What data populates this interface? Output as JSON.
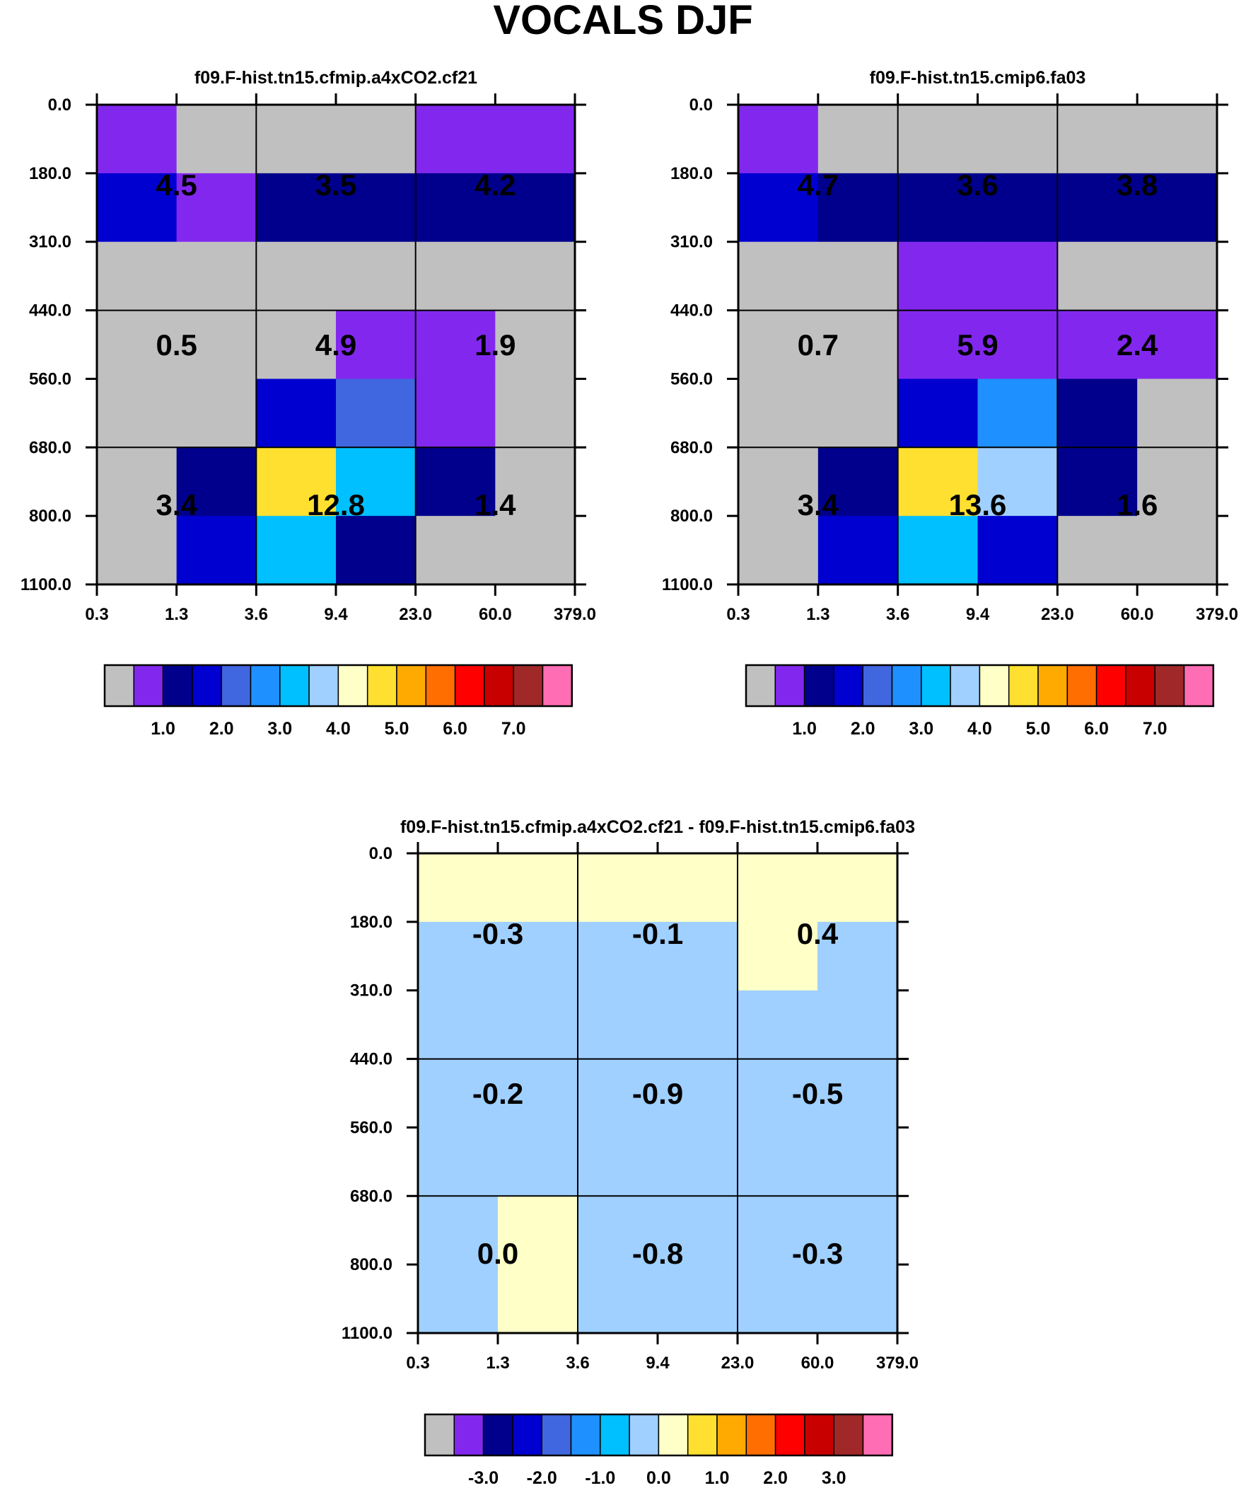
{
  "title": "VOCALS DJF",
  "palette": [
    "#c0c0c0",
    "#8228ee",
    "#00008c",
    "#0000d0",
    "#4066e0",
    "#1e90ff",
    "#00c0ff",
    "#a0d0ff",
    "#ffffc8",
    "#ffe030",
    "#ffaa00",
    "#ff6e00",
    "#ff0000",
    "#c80000",
    "#a02828",
    "#ff6eb4"
  ],
  "chart_data": [
    {
      "type": "heatmap",
      "title": "f09.F-hist.tn15.cfmip.a4xCO2.cf21",
      "x_ticks": [
        "0.3",
        "1.3",
        "3.6",
        "9.4",
        "23.0",
        "60.0",
        "379.0"
      ],
      "y_ticks": [
        "0.0",
        "180.0",
        "310.0",
        "440.0",
        "560.0",
        "680.0",
        "800.0",
        "1100.0"
      ],
      "fine_bins": [
        [
          1,
          0,
          0,
          0,
          1,
          1
        ],
        [
          3,
          1,
          2,
          2,
          2,
          2
        ],
        [
          0,
          0,
          0,
          0,
          0,
          0
        ],
        [
          0,
          0,
          0,
          1,
          1,
          0
        ],
        [
          0,
          0,
          3,
          4,
          1,
          0
        ],
        [
          0,
          2,
          9,
          6,
          2,
          0
        ],
        [
          0,
          3,
          6,
          2,
          0,
          0
        ]
      ],
      "labels": [
        [
          "4.5",
          "3.5",
          "4.2"
        ],
        [
          "0.5",
          "4.9",
          "1.9"
        ],
        [
          "3.4",
          "12.8",
          "1.4"
        ]
      ],
      "colorbar_ticks": [
        "1.0",
        "2.0",
        "3.0",
        "4.0",
        "5.0",
        "6.0",
        "7.0"
      ]
    },
    {
      "type": "heatmap",
      "title": "f09.F-hist.tn15.cmip6.fa03",
      "x_ticks": [
        "0.3",
        "1.3",
        "3.6",
        "9.4",
        "23.0",
        "60.0",
        "379.0"
      ],
      "y_ticks": [
        "0.0",
        "180.0",
        "310.0",
        "440.0",
        "560.0",
        "680.0",
        "800.0",
        "1100.0"
      ],
      "fine_bins": [
        [
          1,
          0,
          0,
          0,
          0,
          0
        ],
        [
          3,
          2,
          2,
          2,
          2,
          2
        ],
        [
          0,
          0,
          1,
          1,
          0,
          0
        ],
        [
          0,
          0,
          1,
          1,
          1,
          1
        ],
        [
          0,
          0,
          3,
          5,
          2,
          0
        ],
        [
          0,
          2,
          9,
          7,
          2,
          0
        ],
        [
          0,
          3,
          6,
          3,
          0,
          0
        ]
      ],
      "labels": [
        [
          "4.7",
          "3.6",
          "3.8"
        ],
        [
          "0.7",
          "5.9",
          "2.4"
        ],
        [
          "3.4",
          "13.6",
          "1.6"
        ]
      ],
      "colorbar_ticks": [
        "1.0",
        "2.0",
        "3.0",
        "4.0",
        "5.0",
        "6.0",
        "7.0"
      ]
    },
    {
      "type": "heatmap",
      "title": "f09.F-hist.tn15.cfmip.a4xCO2.cf21 - f09.F-hist.tn15.cmip6.fa03",
      "x_ticks": [
        "0.3",
        "1.3",
        "3.6",
        "9.4",
        "23.0",
        "60.0",
        "379.0"
      ],
      "y_ticks": [
        "0.0",
        "180.0",
        "310.0",
        "440.0",
        "560.0",
        "680.0",
        "800.0",
        "1100.0"
      ],
      "fine_bins": [
        [
          8,
          8,
          8,
          8,
          8,
          8
        ],
        [
          7,
          7,
          7,
          7,
          8,
          7
        ],
        [
          7,
          7,
          7,
          7,
          7,
          7
        ],
        [
          7,
          7,
          7,
          7,
          7,
          7
        ],
        [
          7,
          7,
          7,
          7,
          7,
          7
        ],
        [
          7,
          8,
          7,
          7,
          7,
          7
        ],
        [
          7,
          8,
          7,
          7,
          7,
          7
        ]
      ],
      "labels": [
        [
          "-0.3",
          "-0.1",
          "0.4"
        ],
        [
          "-0.2",
          "-0.9",
          "-0.5"
        ],
        [
          "0.0",
          "-0.8",
          "-0.3"
        ]
      ],
      "colorbar_ticks": [
        "-3.0",
        "-2.0",
        "-1.0",
        "0.0",
        "1.0",
        "2.0",
        "3.0"
      ]
    }
  ]
}
